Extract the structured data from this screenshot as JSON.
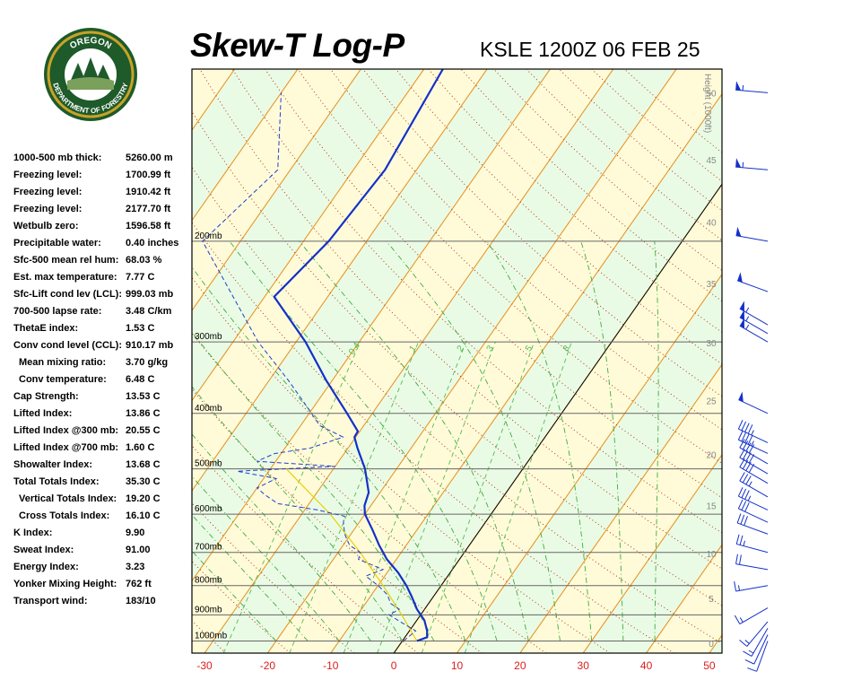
{
  "header": {
    "title": "Skew-T Log-P",
    "subtitle": "KSLE 1200Z 06 FEB 25",
    "logo": {
      "top_text": "OREGON",
      "bottom_text": "DEPARTMENT OF FORESTRY"
    }
  },
  "stats": [
    {
      "label": "1000-500 mb thick:",
      "value": "5260.00 m"
    },
    {
      "label": "Freezing level:",
      "value": "1700.99 ft"
    },
    {
      "label": "Freezing level:",
      "value": "1910.42 ft"
    },
    {
      "label": "Freezing level:",
      "value": "2177.70 ft"
    },
    {
      "label": "Wetbulb zero:",
      "value": "1596.58 ft"
    },
    {
      "label": "Precipitable water:",
      "value": "0.40 inches"
    },
    {
      "label": "Sfc-500 mean rel hum:",
      "value": "68.03 %"
    },
    {
      "label": "Est. max temperature:",
      "value": "7.77 C"
    },
    {
      "label": "Sfc-Lift cond lev (LCL):",
      "value": "999.03 mb"
    },
    {
      "label": "700-500 lapse rate:",
      "value": "3.48 C/km"
    },
    {
      "label": "ThetaE index:",
      "value": "1.53 C"
    },
    {
      "label": "Conv cond level (CCL):",
      "value": "910.17 mb"
    },
    {
      "label": "Mean mixing ratio:",
      "value": "3.70 g/kg",
      "indent": true
    },
    {
      "label": "Conv temperature:",
      "value": "6.48 C",
      "indent": true
    },
    {
      "label": "Cap Strength:",
      "value": "13.53 C"
    },
    {
      "label": "Lifted Index:",
      "value": "13.86 C"
    },
    {
      "label": "Lifted Index @300 mb:",
      "value": "20.55 C"
    },
    {
      "label": "Lifted Index @700 mb:",
      "value": "1.60 C"
    },
    {
      "label": "Showalter Index:",
      "value": "13.68 C"
    },
    {
      "label": "Total Totals Index:",
      "value": "35.30 C"
    },
    {
      "label": "Vertical Totals Index:",
      "value": "19.20 C",
      "indent": true
    },
    {
      "label": "Cross Totals Index:",
      "value": "16.10 C",
      "indent": true
    },
    {
      "label": "K Index:",
      "value": "9.90"
    },
    {
      "label": "Sweat Index:",
      "value": "91.00"
    },
    {
      "label": "Energy Index:",
      "value": "3.23"
    },
    {
      "label": "Yonker Mixing Height:",
      "value": "762 ft"
    },
    {
      "label": "Transport wind:",
      "value": "183/10"
    }
  ],
  "chart_data": {
    "type": "line",
    "title": "Skew-T Log-P",
    "xlabel": "",
    "ylabel": "",
    "x_ticks": [
      -30,
      -20,
      -10,
      0,
      10,
      20,
      30,
      40,
      50
    ],
    "pressure_levels": [
      {
        "p": 200,
        "label": "200mb"
      },
      {
        "p": 300,
        "label": "300mb"
      },
      {
        "p": 400,
        "label": "400mb"
      },
      {
        "p": 500,
        "label": "500mb"
      },
      {
        "p": 600,
        "label": "600mb"
      },
      {
        "p": 700,
        "label": "700mb"
      },
      {
        "p": 800,
        "label": "800mb"
      },
      {
        "p": 900,
        "label": "900mb"
      },
      {
        "p": 1000,
        "label": "1000mb"
      }
    ],
    "height_axis": {
      "title": "Height (1000ft)",
      "ticks": [
        {
          "label": "0",
          "p": 1009
        },
        {
          "label": "5",
          "p": 842
        },
        {
          "label": "10",
          "p": 703
        },
        {
          "label": "15",
          "p": 580
        },
        {
          "label": "20",
          "p": 472
        },
        {
          "label": "25",
          "p": 380
        },
        {
          "label": "30",
          "p": 301
        },
        {
          "label": "35",
          "p": 237
        },
        {
          "label": "40",
          "p": 185
        },
        {
          "label": "45",
          "p": 144
        },
        {
          "label": "50",
          "p": 110
        }
      ]
    },
    "mixing_ratio_labels": [
      "0.4",
      "1",
      "2",
      "3",
      "5",
      "8"
    ],
    "series": [
      {
        "values": [
          {
            "p": 1000,
            "t": 2.3
          },
          {
            "p": 985,
            "t": 3.5
          },
          {
            "p": 960,
            "t": 2.8
          },
          {
            "p": 920,
            "t": 1.2
          },
          {
            "p": 880,
            "t": -1.2
          },
          {
            "p": 835,
            "t": -3.5
          },
          {
            "p": 800,
            "t": -5.5
          },
          {
            "p": 760,
            "t": -8.2
          },
          {
            "p": 720,
            "t": -11.5
          },
          {
            "p": 680,
            "t": -14.3
          },
          {
            "p": 640,
            "t": -17.0
          },
          {
            "p": 600,
            "t": -20.0
          },
          {
            "p": 580,
            "t": -21.0
          },
          {
            "p": 550,
            "t": -21.8
          },
          {
            "p": 500,
            "t": -25.0
          },
          {
            "p": 460,
            "t": -28.5
          },
          {
            "p": 440,
            "t": -30.2
          },
          {
            "p": 430,
            "t": -30.3
          },
          {
            "p": 400,
            "t": -34.0
          },
          {
            "p": 350,
            "t": -41.0
          },
          {
            "p": 300,
            "t": -48.5
          },
          {
            "p": 250,
            "t": -58.5
          },
          {
            "p": 200,
            "t": -56.0
          },
          {
            "p": 150,
            "t": -55.0
          },
          {
            "p": 100,
            "t": -57.0
          }
        ]
      },
      {
        "values": [
          {
            "p": 1000,
            "t": 0.2
          },
          {
            "p": 960,
            "t": 1.0
          },
          {
            "p": 930,
            "t": -2.0
          },
          {
            "p": 900,
            "t": -5.0
          },
          {
            "p": 880,
            "t": -4.0
          },
          {
            "p": 860,
            "t": -6.0
          },
          {
            "p": 830,
            "t": -7.5
          },
          {
            "p": 800,
            "t": -10.0
          },
          {
            "p": 770,
            "t": -13.0
          },
          {
            "p": 750,
            "t": -11.0
          },
          {
            "p": 720,
            "t": -16.0
          },
          {
            "p": 700,
            "t": -16.5
          },
          {
            "p": 680,
            "t": -19.0
          },
          {
            "p": 650,
            "t": -21.0
          },
          {
            "p": 620,
            "t": -22.5
          },
          {
            "p": 605,
            "t": -23.0
          },
          {
            "p": 590,
            "t": -28.0
          },
          {
            "p": 575,
            "t": -35.0
          },
          {
            "p": 555,
            "t": -38.0
          },
          {
            "p": 540,
            "t": -40.0
          },
          {
            "p": 520,
            "t": -38.0
          },
          {
            "p": 505,
            "t": -45.0
          },
          {
            "p": 495,
            "t": -30.0
          },
          {
            "p": 485,
            "t": -43.0
          },
          {
            "p": 470,
            "t": -41.0
          },
          {
            "p": 460,
            "t": -36.0
          },
          {
            "p": 440,
            "t": -32.0
          },
          {
            "p": 420,
            "t": -37.0
          },
          {
            "p": 390,
            "t": -41.0
          },
          {
            "p": 350,
            "t": -47.0
          },
          {
            "p": 300,
            "t": -56.0
          },
          {
            "p": 250,
            "t": -65.0
          },
          {
            "p": 200,
            "t": -76.0
          },
          {
            "p": 150,
            "t": -72.0
          },
          {
            "p": 110,
            "t": -80.0
          }
        ]
      }
    ],
    "parcel_path": [
      {
        "p": 1000,
        "t": 2.3
      },
      {
        "p": 900,
        "t": -3.0
      },
      {
        "p": 800,
        "t": -9.2
      },
      {
        "p": 700,
        "t": -16.5
      },
      {
        "p": 600,
        "t": -25.5
      },
      {
        "p": 500,
        "t": -37.5
      }
    ],
    "wind_barbs": [
      {
        "p": 1000,
        "dir": 200,
        "spd": 10
      },
      {
        "p": 975,
        "dir": 205,
        "spd": 10
      },
      {
        "p": 950,
        "dir": 210,
        "spd": 15
      },
      {
        "p": 925,
        "dir": 220,
        "spd": 15
      },
      {
        "p": 875,
        "dir": 240,
        "spd": 15
      },
      {
        "p": 800,
        "dir": 260,
        "spd": 15
      },
      {
        "p": 750,
        "dir": 280,
        "spd": 20
      },
      {
        "p": 700,
        "dir": 285,
        "spd": 25
      },
      {
        "p": 650,
        "dir": 290,
        "spd": 30
      },
      {
        "p": 620,
        "dir": 295,
        "spd": 30
      },
      {
        "p": 590,
        "dir": 295,
        "spd": 35
      },
      {
        "p": 560,
        "dir": 300,
        "spd": 35
      },
      {
        "p": 530,
        "dir": 300,
        "spd": 40
      },
      {
        "p": 510,
        "dir": 300,
        "spd": 40
      },
      {
        "p": 490,
        "dir": 300,
        "spd": 40
      },
      {
        "p": 470,
        "dir": 295,
        "spd": 45
      },
      {
        "p": 450,
        "dir": 295,
        "spd": 45
      },
      {
        "p": 400,
        "dir": 295,
        "spd": 50
      },
      {
        "p": 300,
        "dir": 300,
        "spd": 55
      },
      {
        "p": 290,
        "dir": 300,
        "spd": 55
      },
      {
        "p": 280,
        "dir": 300,
        "spd": 55
      },
      {
        "p": 245,
        "dir": 290,
        "spd": 50
      },
      {
        "p": 200,
        "dir": 280,
        "spd": 50
      },
      {
        "p": 150,
        "dir": 275,
        "spd": 55
      },
      {
        "p": 110,
        "dir": 275,
        "spd": 55
      }
    ]
  }
}
